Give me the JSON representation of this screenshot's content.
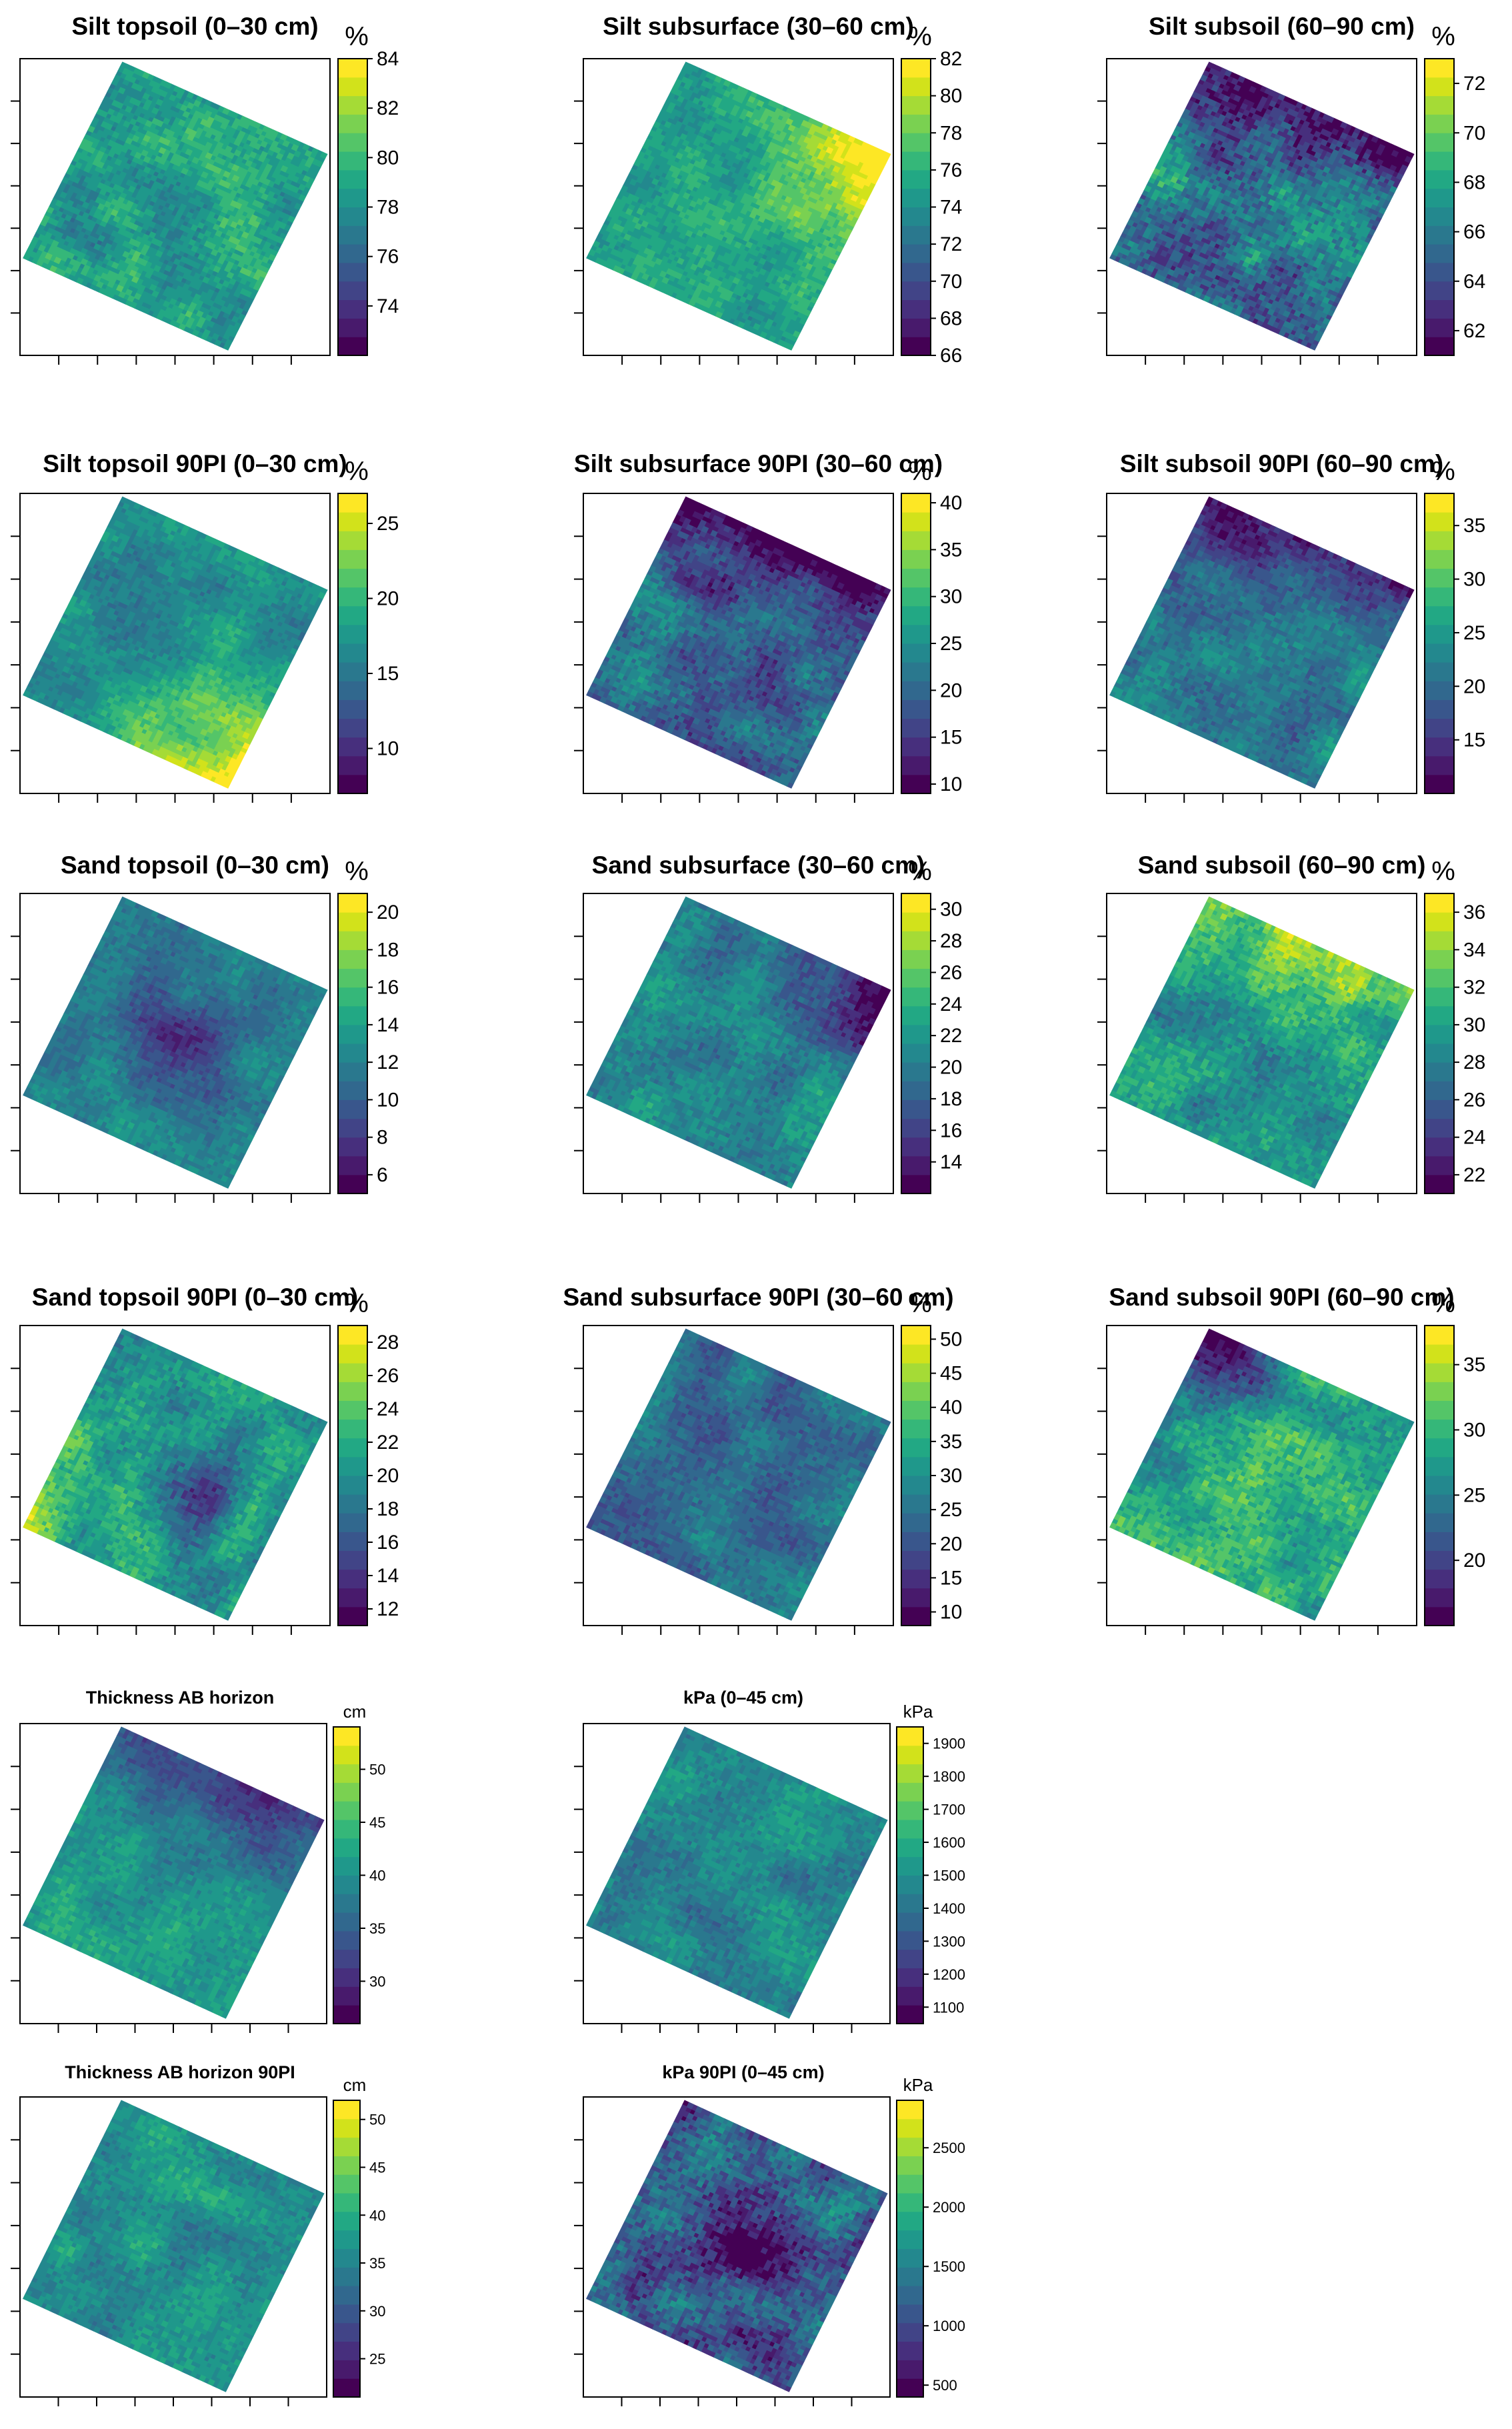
{
  "colormap": [
    "#440154",
    "#481a6c",
    "#472f7d",
    "#414487",
    "#39568c",
    "#31688e",
    "#2a788e",
    "#23888e",
    "#1f988b",
    "#22a884",
    "#35b779",
    "#54c568",
    "#7ad151",
    "#a5db36",
    "#d2e21b",
    "#fde725"
  ],
  "chart_data": [
    {
      "type": "heatmap",
      "title": "Silt topsoil (0–30 cm)",
      "unit": "%",
      "ticks": [
        "84",
        "82",
        "80",
        "78",
        "76",
        "74"
      ],
      "range": [
        72,
        84
      ],
      "base": 0.56,
      "noise": 0.18,
      "pattern": "uniform"
    },
    {
      "type": "heatmap",
      "title": "Silt subsurface (30–60 cm)",
      "unit": "%",
      "ticks": [
        "82",
        "80",
        "78",
        "76",
        "74",
        "72",
        "70",
        "68",
        "66"
      ],
      "range": [
        66,
        82
      ],
      "base": 0.58,
      "noise": 0.14,
      "pattern": "bright-top-right"
    },
    {
      "type": "heatmap",
      "title": "Silt subsoil (60–90 cm)",
      "unit": "%",
      "ticks": [
        "72",
        "70",
        "68",
        "66",
        "64",
        "62"
      ],
      "range": [
        61,
        73
      ],
      "base": 0.4,
      "noise": 0.3,
      "pattern": "dark-top"
    },
    {
      "type": "heatmap",
      "title": "Silt topsoil 90PI  (0–30 cm)",
      "unit": "%",
      "ticks": [
        "25",
        "20",
        "15",
        "10"
      ],
      "range": [
        7,
        27
      ],
      "base": 0.48,
      "noise": 0.14,
      "pattern": "bright-bottom-right"
    },
    {
      "type": "heatmap",
      "title": "Silt subsurface 90PI (30–60 cm)",
      "unit": "%",
      "ticks": [
        "40",
        "35",
        "30",
        "25",
        "20",
        "15",
        "10"
      ],
      "range": [
        9,
        41
      ],
      "base": 0.33,
      "noise": 0.22,
      "pattern": "dark-top"
    },
    {
      "type": "heatmap",
      "title": "Silt subsoil 90PI (60–90 cm)",
      "unit": "%",
      "ticks": [
        "35",
        "30",
        "25",
        "20",
        "15"
      ],
      "range": [
        10,
        38
      ],
      "base": 0.42,
      "noise": 0.18,
      "pattern": "dark-top"
    },
    {
      "type": "heatmap",
      "title": "Sand topsoil (0–30 cm)",
      "unit": "%",
      "ticks": [
        "20",
        "18",
        "16",
        "14",
        "12",
        "10",
        "8",
        "6"
      ],
      "range": [
        5,
        21
      ],
      "base": 0.42,
      "noise": 0.14,
      "pattern": "dark-center"
    },
    {
      "type": "heatmap",
      "title": "Sand subsurface (30–60 cm)",
      "unit": "%",
      "ticks": [
        "30",
        "28",
        "26",
        "24",
        "22",
        "20",
        "18",
        "16",
        "14"
      ],
      "range": [
        12,
        31
      ],
      "base": 0.44,
      "noise": 0.18,
      "pattern": "dark-top-right"
    },
    {
      "type": "heatmap",
      "title": "Sand subsoil (60–90 cm)",
      "unit": "%",
      "ticks": [
        "36",
        "34",
        "32",
        "30",
        "28",
        "26",
        "24",
        "22"
      ],
      "range": [
        21,
        37
      ],
      "base": 0.5,
      "noise": 0.2,
      "pattern": "bright-top"
    },
    {
      "type": "heatmap",
      "title": "Sand topsoil 90PI (0–30 cm)",
      "unit": "%",
      "ticks": [
        "28",
        "26",
        "24",
        "22",
        "20",
        "18",
        "16",
        "14",
        "12"
      ],
      "range": [
        11,
        29
      ],
      "base": 0.52,
      "noise": 0.2,
      "pattern": "dark-center-bright-left"
    },
    {
      "type": "heatmap",
      "title": "Sand subsurface 90PI (30–60 cm)",
      "unit": "%",
      "ticks": [
        "50",
        "45",
        "40",
        "35",
        "30",
        "25",
        "20",
        "15",
        "10"
      ],
      "range": [
        8,
        52
      ],
      "base": 0.36,
      "noise": 0.16,
      "pattern": "uniform"
    },
    {
      "type": "heatmap",
      "title": "Sand subsoil 90PI (60–90 cm)",
      "unit": "%",
      "ticks": [
        "35",
        "30",
        "25",
        "20"
      ],
      "range": [
        15,
        38
      ],
      "base": 0.55,
      "noise": 0.22,
      "pattern": "dark-top-left"
    },
    {
      "type": "heatmap",
      "title": "Thickness AB horizon",
      "unit": "cm",
      "ticks": [
        "50",
        "45",
        "40",
        "35",
        "30"
      ],
      "range": [
        26,
        54
      ],
      "base": 0.52,
      "noise": 0.14,
      "pattern": "dark-top"
    },
    {
      "type": "heatmap",
      "title": "kPa (0–45 cm)",
      "unit": "kPa",
      "ticks": [
        "1900",
        "1800",
        "1700",
        "1600",
        "1500",
        "1400",
        "1300",
        "1200",
        "1100"
      ],
      "range": [
        1050,
        1950
      ],
      "base": 0.45,
      "noise": 0.16,
      "pattern": "uniform"
    },
    {
      "type": "heatmap",
      "title": "Thickness AB horizon 90PI",
      "unit": "cm",
      "ticks": [
        "50",
        "45",
        "40",
        "35",
        "30",
        "25"
      ],
      "range": [
        21,
        52
      ],
      "base": 0.5,
      "noise": 0.15,
      "pattern": "uniform"
    },
    {
      "type": "heatmap",
      "title": "kPa 90PI (0–45 cm)",
      "unit": "kPa",
      "ticks": [
        "2500",
        "2000",
        "1500",
        "1000",
        "500"
      ],
      "range": [
        400,
        2900
      ],
      "base": 0.3,
      "noise": 0.28,
      "pattern": "dark-center"
    }
  ]
}
